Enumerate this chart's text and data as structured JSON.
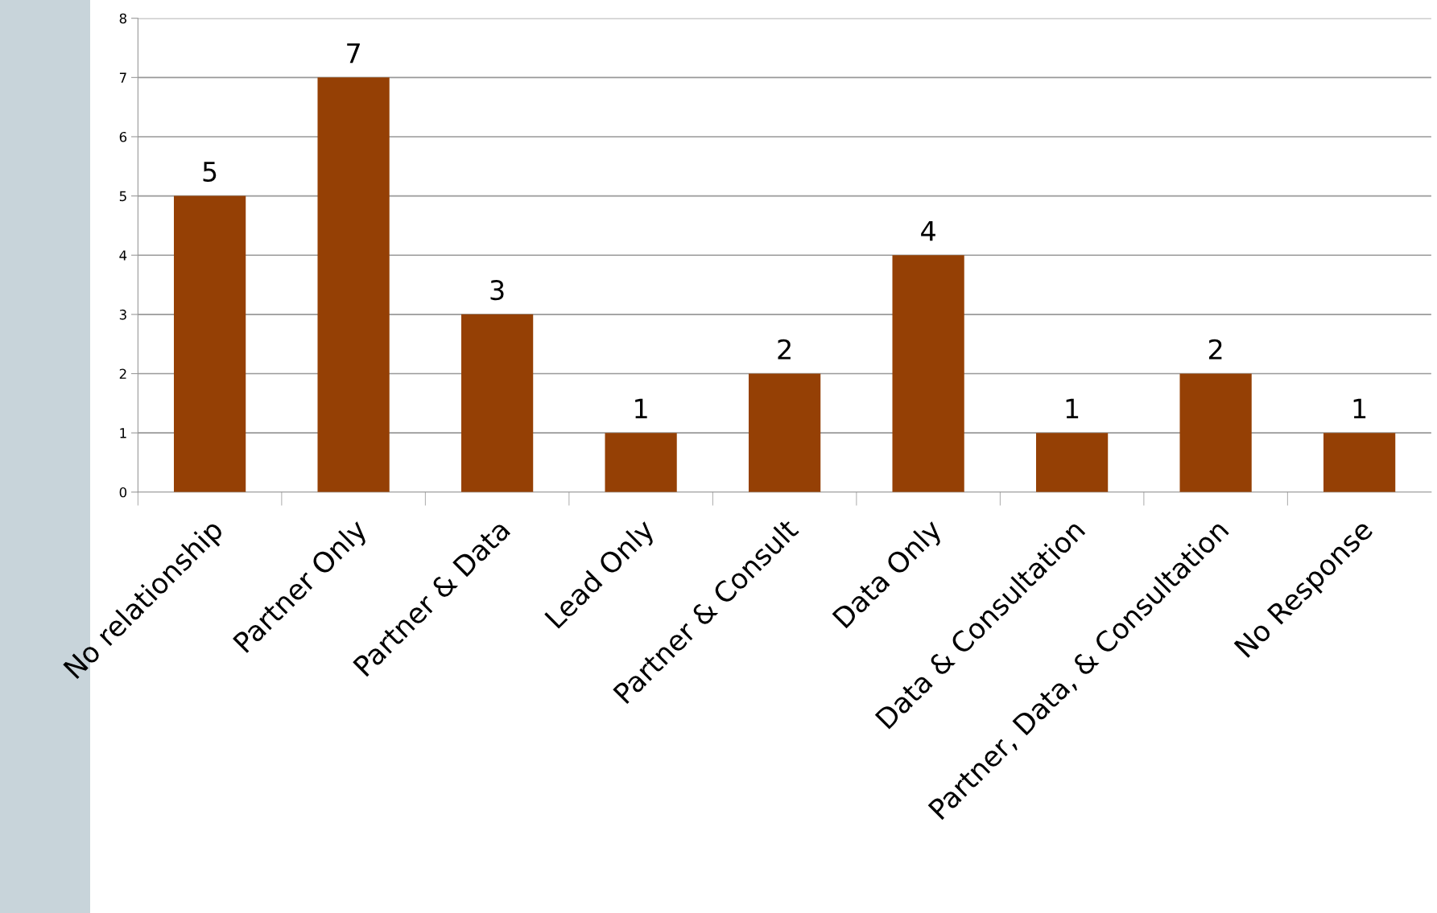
{
  "chart_data": {
    "type": "bar",
    "categories": [
      "No relationship",
      "Partner Only",
      "Partner & Data",
      "Lead Only",
      "Partner & Consult",
      "Data Only",
      "Data & Consultation",
      "Partner, Data, & Consultation",
      "No Response"
    ],
    "values": [
      5,
      7,
      3,
      1,
      2,
      4,
      1,
      2,
      1
    ],
    "color": "#954005",
    "ylim": [
      0,
      8
    ],
    "yticks": [
      0,
      1,
      2,
      3,
      4,
      5,
      6,
      7,
      8
    ],
    "grid": "y",
    "data_labels": true
  }
}
